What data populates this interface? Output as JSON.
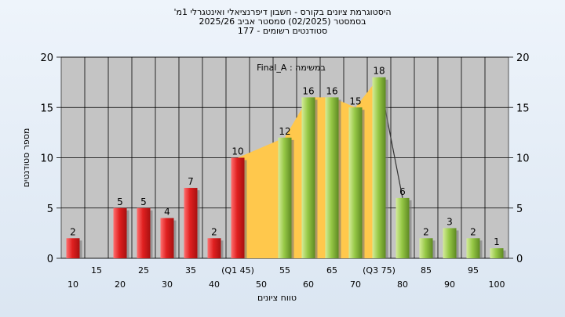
{
  "titles": [
    "היסטוגרמת ציונים בקורס - חשבון דיפרנציאלי ואינטגרלי 1מ'",
    "בסמסטר  (02/2025)  סמסטר אביב 2025/26",
    "סטודנטים רשומים - 177"
  ],
  "colors": {
    "red": "#e02020",
    "green": "#96c846",
    "area": "#ffc84c",
    "plot_bg": "#c4c4c4",
    "grid": "#000000"
  },
  "chart_data": {
    "type": "bar",
    "annotation": "במשימה : Final_A",
    "xlabel": "טווח ציונים",
    "ylabel": "מספר סטודנטים",
    "ylim": [
      0,
      20
    ],
    "yticks": [
      "0",
      "5",
      "10",
      "15",
      "20"
    ],
    "x_tick_labels_lower": [
      "10",
      "20",
      "30",
      "40",
      "50",
      "60",
      "70",
      "80",
      "90",
      "100"
    ],
    "x_tick_labels_upper": [
      "15",
      "25",
      "35",
      "(Q1 45)",
      "55",
      "65",
      "(Q3 75)",
      "85",
      "95"
    ],
    "categories": [
      "10",
      "15",
      "20",
      "25",
      "30",
      "35",
      "40",
      "45",
      "50",
      "55",
      "60",
      "65",
      "70",
      "75",
      "80",
      "85",
      "90",
      "95",
      "100"
    ],
    "values": [
      2,
      0,
      5,
      5,
      4,
      7,
      2,
      10,
      0,
      12,
      16,
      16,
      15,
      18,
      6,
      2,
      3,
      2,
      1
    ],
    "labels": [
      "2",
      "",
      "5",
      "5",
      "4",
      "7",
      "2",
      "10",
      "",
      "12",
      "16",
      "16",
      "15",
      "18",
      "6",
      "2",
      "3",
      "2",
      "1"
    ],
    "bar_colors": [
      "red",
      "red",
      "red",
      "red",
      "red",
      "red",
      "red",
      "red",
      "green",
      "green",
      "green",
      "green",
      "green",
      "green",
      "green",
      "green",
      "green",
      "green",
      "green"
    ],
    "interquartile_area": {
      "from": "45",
      "to": "75"
    }
  }
}
